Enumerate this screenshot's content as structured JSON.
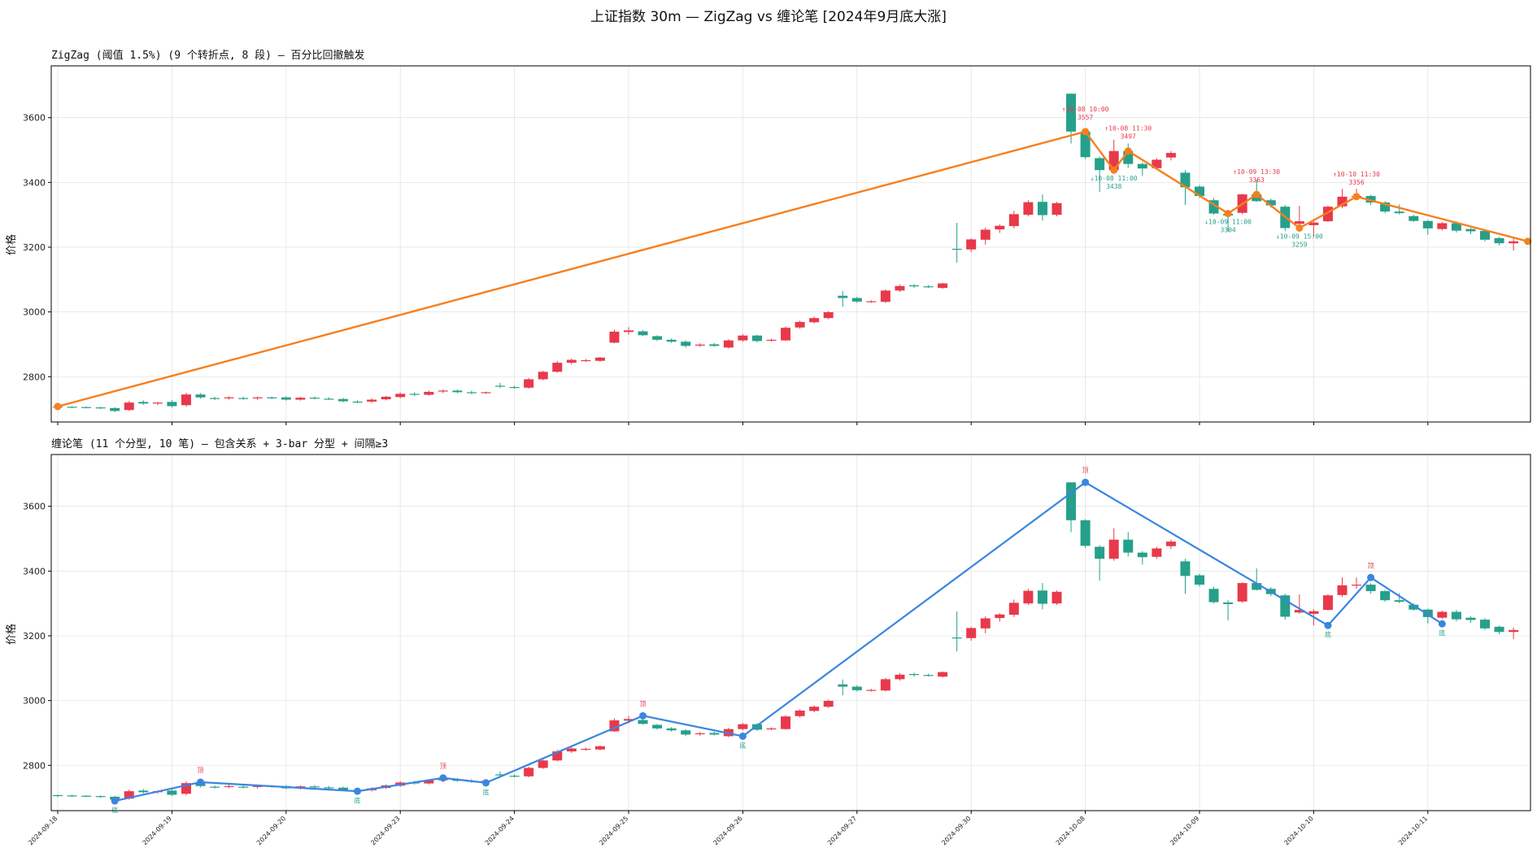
{
  "figure_title": "上证指数 30m — ZigZag vs 缠论笔  [2024年9月底大涨]",
  "colors": {
    "up": "#e8394a",
    "down": "#26a08a",
    "zigzag": "#f77f1d",
    "bi": "#3a86e0",
    "grid": "#e3e3e3"
  },
  "chart_data": [
    {
      "type": "candlestick",
      "title": "ZigZag (阈值 1.5%)  (9 个转折点, 8 段)  — 百分比回撤触发",
      "ylabel": "价格",
      "ylim": [
        2660,
        3760
      ],
      "yticks": [
        2800,
        3000,
        3200,
        3400,
        3600
      ],
      "grid": true,
      "overlay": "zigzag",
      "pivots": [
        {
          "bar": 0,
          "price": 2708,
          "kind": "low",
          "label": ""
        },
        {
          "bar": 72,
          "price": 3557,
          "kind": "high",
          "time": "10-08 10:00",
          "label": "3557"
        },
        {
          "bar": 74,
          "price": 3438,
          "kind": "low",
          "time": "10-08 11:00",
          "label": "3438"
        },
        {
          "bar": 75,
          "price": 3497,
          "kind": "high",
          "time": "10-08 11:30",
          "label": "3497"
        },
        {
          "bar": 82,
          "price": 3304,
          "kind": "low",
          "time": "10-09 11:00",
          "label": "3304"
        },
        {
          "bar": 84,
          "price": 3363,
          "kind": "high",
          "time": "10-09 13:30",
          "label": "3363"
        },
        {
          "bar": 87,
          "price": 3259,
          "kind": "low",
          "time": "10-09 15:00",
          "label": "3259"
        },
        {
          "bar": 91,
          "price": 3356,
          "kind": "high",
          "time": "10-10 11:30",
          "label": "3356"
        },
        {
          "bar": 103,
          "price": 3218,
          "kind": "low",
          "label": ""
        }
      ]
    },
    {
      "type": "candlestick",
      "title": "缠论笔  (11 个分型, 10 笔)  — 包含关系 + 3-bar 分型 + 间隔≥3",
      "ylabel": "价格",
      "ylim": [
        2660,
        3760
      ],
      "yticks": [
        2800,
        3000,
        3200,
        3400,
        3600
      ],
      "grid": true,
      "overlay": "bi",
      "fractals": [
        {
          "bar": 4,
          "price": 2690,
          "kind": "bottom",
          "label": "底"
        },
        {
          "bar": 10,
          "price": 2748,
          "kind": "top",
          "label": "顶"
        },
        {
          "bar": 21,
          "price": 2720,
          "kind": "bottom",
          "label": "底"
        },
        {
          "bar": 27,
          "price": 2761,
          "kind": "top",
          "label": "顶"
        },
        {
          "bar": 30,
          "price": 2746,
          "kind": "bottom",
          "label": "底"
        },
        {
          "bar": 41,
          "price": 2953,
          "kind": "top",
          "label": "顶"
        },
        {
          "bar": 48,
          "price": 2890,
          "kind": "bottom",
          "label": "底"
        },
        {
          "bar": 72,
          "price": 3674,
          "kind": "top",
          "label": "顶"
        },
        {
          "bar": 89,
          "price": 3232,
          "kind": "bottom",
          "label": "底"
        },
        {
          "bar": 92,
          "price": 3380,
          "kind": "top",
          "label": "顶"
        },
        {
          "bar": 97,
          "price": 3237,
          "kind": "bottom",
          "label": "底"
        }
      ]
    }
  ],
  "x_axis": {
    "tick_labels": [
      {
        "bar": 0,
        "label": "2024-09-18"
      },
      {
        "bar": 8,
        "label": "2024-09-19"
      },
      {
        "bar": 16,
        "label": "2024-09-20"
      },
      {
        "bar": 24,
        "label": "2024-09-23"
      },
      {
        "bar": 32,
        "label": "2024-09-24"
      },
      {
        "bar": 40,
        "label": "2024-09-25"
      },
      {
        "bar": 48,
        "label": "2024-09-26"
      },
      {
        "bar": 56,
        "label": "2024-09-27"
      },
      {
        "bar": 64,
        "label": "2024-09-30"
      },
      {
        "bar": 72,
        "label": "2024-10-08"
      },
      {
        "bar": 80,
        "label": "2024-10-09"
      },
      {
        "bar": 88,
        "label": "2024-10-10"
      },
      {
        "bar": 96,
        "label": "2024-10-11"
      }
    ]
  },
  "candles": [
    {
      "o": 2708,
      "h": 2710,
      "l": 2702,
      "c": 2706
    },
    {
      "o": 2707,
      "h": 2709,
      "l": 2703,
      "c": 2705
    },
    {
      "o": 2706,
      "h": 2708,
      "l": 2702,
      "c": 2704
    },
    {
      "o": 2705,
      "h": 2707,
      "l": 2700,
      "c": 2702
    },
    {
      "o": 2703,
      "h": 2706,
      "l": 2690,
      "c": 2694
    },
    {
      "o": 2697,
      "h": 2725,
      "l": 2694,
      "c": 2720
    },
    {
      "o": 2722,
      "h": 2727,
      "l": 2713,
      "c": 2717
    },
    {
      "o": 2717,
      "h": 2722,
      "l": 2712,
      "c": 2720
    },
    {
      "o": 2722,
      "h": 2728,
      "l": 2705,
      "c": 2709
    },
    {
      "o": 2712,
      "h": 2750,
      "l": 2707,
      "c": 2745
    },
    {
      "o": 2745,
      "h": 2749,
      "l": 2732,
      "c": 2736
    },
    {
      "o": 2734,
      "h": 2738,
      "l": 2728,
      "c": 2732
    },
    {
      "o": 2733,
      "h": 2740,
      "l": 2729,
      "c": 2736
    },
    {
      "o": 2734,
      "h": 2738,
      "l": 2729,
      "c": 2733
    },
    {
      "o": 2733,
      "h": 2739,
      "l": 2728,
      "c": 2736
    },
    {
      "o": 2736,
      "h": 2739,
      "l": 2731,
      "c": 2733
    },
    {
      "o": 2736,
      "h": 2739,
      "l": 2726,
      "c": 2729
    },
    {
      "o": 2729,
      "h": 2738,
      "l": 2726,
      "c": 2735
    },
    {
      "o": 2735,
      "h": 2739,
      "l": 2730,
      "c": 2732
    },
    {
      "o": 2732,
      "h": 2736,
      "l": 2728,
      "c": 2731
    },
    {
      "o": 2731,
      "h": 2734,
      "l": 2721,
      "c": 2724
    },
    {
      "o": 2723,
      "h": 2727,
      "l": 2719,
      "c": 2722
    },
    {
      "o": 2723,
      "h": 2733,
      "l": 2719,
      "c": 2729
    },
    {
      "o": 2730,
      "h": 2741,
      "l": 2727,
      "c": 2738
    },
    {
      "o": 2737,
      "h": 2751,
      "l": 2733,
      "c": 2747
    },
    {
      "o": 2747,
      "h": 2752,
      "l": 2740,
      "c": 2744
    },
    {
      "o": 2744,
      "h": 2757,
      "l": 2741,
      "c": 2753
    },
    {
      "o": 2754,
      "h": 2761,
      "l": 2749,
      "c": 2757
    },
    {
      "o": 2757,
      "h": 2760,
      "l": 2749,
      "c": 2752
    },
    {
      "o": 2752,
      "h": 2757,
      "l": 2746,
      "c": 2750
    },
    {
      "o": 2750,
      "h": 2754,
      "l": 2747,
      "c": 2752
    },
    {
      "o": 2772,
      "h": 2781,
      "l": 2765,
      "c": 2770
    },
    {
      "o": 2768,
      "h": 2772,
      "l": 2763,
      "c": 2766
    },
    {
      "o": 2766,
      "h": 2796,
      "l": 2763,
      "c": 2792
    },
    {
      "o": 2792,
      "h": 2818,
      "l": 2789,
      "c": 2815
    },
    {
      "o": 2815,
      "h": 2848,
      "l": 2812,
      "c": 2843
    },
    {
      "o": 2843,
      "h": 2856,
      "l": 2838,
      "c": 2852
    },
    {
      "o": 2850,
      "h": 2855,
      "l": 2845,
      "c": 2851
    },
    {
      "o": 2849,
      "h": 2861,
      "l": 2846,
      "c": 2859
    },
    {
      "o": 2905,
      "h": 2945,
      "l": 2903,
      "c": 2939
    },
    {
      "o": 2938,
      "h": 2953,
      "l": 2930,
      "c": 2943
    },
    {
      "o": 2940,
      "h": 2944,
      "l": 2925,
      "c": 2928
    },
    {
      "o": 2925,
      "h": 2928,
      "l": 2910,
      "c": 2914
    },
    {
      "o": 2914,
      "h": 2918,
      "l": 2904,
      "c": 2908
    },
    {
      "o": 2908,
      "h": 2912,
      "l": 2890,
      "c": 2895
    },
    {
      "o": 2896,
      "h": 2903,
      "l": 2892,
      "c": 2899
    },
    {
      "o": 2900,
      "h": 2904,
      "l": 2892,
      "c": 2895
    },
    {
      "o": 2890,
      "h": 2916,
      "l": 2887,
      "c": 2912
    },
    {
      "o": 2912,
      "h": 2931,
      "l": 2908,
      "c": 2927
    },
    {
      "o": 2927,
      "h": 2930,
      "l": 2906,
      "c": 2910
    },
    {
      "o": 2912,
      "h": 2917,
      "l": 2909,
      "c": 2914
    },
    {
      "o": 2912,
      "h": 2955,
      "l": 2910,
      "c": 2951
    },
    {
      "o": 2952,
      "h": 2973,
      "l": 2948,
      "c": 2969
    },
    {
      "o": 2968,
      "h": 2985,
      "l": 2964,
      "c": 2981
    },
    {
      "o": 2981,
      "h": 3003,
      "l": 2977,
      "c": 2999
    },
    {
      "o": 3050,
      "h": 3065,
      "l": 3016,
      "c": 3043
    },
    {
      "o": 3043,
      "h": 3047,
      "l": 3028,
      "c": 3032
    },
    {
      "o": 3032,
      "h": 3036,
      "l": 3028,
      "c": 3033
    },
    {
      "o": 3031,
      "h": 3070,
      "l": 3028,
      "c": 3066
    },
    {
      "o": 3066,
      "h": 3085,
      "l": 3062,
      "c": 3080
    },
    {
      "o": 3082,
      "h": 3086,
      "l": 3074,
      "c": 3079
    },
    {
      "o": 3079,
      "h": 3083,
      "l": 3074,
      "c": 3077
    },
    {
      "o": 3074,
      "h": 3090,
      "l": 3071,
      "c": 3088
    },
    {
      "o": 3195,
      "h": 3275,
      "l": 3152,
      "c": 3194
    },
    {
      "o": 3193,
      "h": 3228,
      "l": 3185,
      "c": 3224
    },
    {
      "o": 3223,
      "h": 3260,
      "l": 3208,
      "c": 3254
    },
    {
      "o": 3255,
      "h": 3270,
      "l": 3244,
      "c": 3266
    },
    {
      "o": 3265,
      "h": 3312,
      "l": 3258,
      "c": 3302
    },
    {
      "o": 3300,
      "h": 3345,
      "l": 3295,
      "c": 3339
    },
    {
      "o": 3340,
      "h": 3363,
      "l": 3282,
      "c": 3299
    },
    {
      "o": 3300,
      "h": 3340,
      "l": 3295,
      "c": 3336
    },
    {
      "o": 3674,
      "h": 3674,
      "l": 3520,
      "c": 3557
    },
    {
      "o": 3557,
      "h": 3560,
      "l": 3472,
      "c": 3478
    },
    {
      "o": 3475,
      "h": 3480,
      "l": 3370,
      "c": 3438
    },
    {
      "o": 3438,
      "h": 3532,
      "l": 3432,
      "c": 3497
    },
    {
      "o": 3497,
      "h": 3520,
      "l": 3445,
      "c": 3457
    },
    {
      "o": 3457,
      "h": 3462,
      "l": 3420,
      "c": 3443
    },
    {
      "o": 3444,
      "h": 3475,
      "l": 3438,
      "c": 3470
    },
    {
      "o": 3477,
      "h": 3497,
      "l": 3468,
      "c": 3491
    },
    {
      "o": 3430,
      "h": 3438,
      "l": 3330,
      "c": 3385
    },
    {
      "o": 3387,
      "h": 3392,
      "l": 3352,
      "c": 3358
    },
    {
      "o": 3345,
      "h": 3352,
      "l": 3300,
      "c": 3304
    },
    {
      "o": 3303,
      "h": 3310,
      "l": 3248,
      "c": 3298
    },
    {
      "o": 3306,
      "h": 3365,
      "l": 3302,
      "c": 3363
    },
    {
      "o": 3363,
      "h": 3408,
      "l": 3340,
      "c": 3342
    },
    {
      "o": 3345,
      "h": 3350,
      "l": 3322,
      "c": 3329
    },
    {
      "o": 3325,
      "h": 3330,
      "l": 3250,
      "c": 3259
    },
    {
      "o": 3272,
      "h": 3328,
      "l": 3268,
      "c": 3280
    },
    {
      "o": 3268,
      "h": 3282,
      "l": 3232,
      "c": 3276
    },
    {
      "o": 3280,
      "h": 3328,
      "l": 3278,
      "c": 3325
    },
    {
      "o": 3326,
      "h": 3380,
      "l": 3320,
      "c": 3356
    },
    {
      "o": 3358,
      "h": 3380,
      "l": 3345,
      "c": 3358
    },
    {
      "o": 3358,
      "h": 3362,
      "l": 3330,
      "c": 3338
    },
    {
      "o": 3338,
      "h": 3342,
      "l": 3305,
      "c": 3310
    },
    {
      "o": 3310,
      "h": 3332,
      "l": 3301,
      "c": 3305
    },
    {
      "o": 3296,
      "h": 3300,
      "l": 3278,
      "c": 3281
    },
    {
      "o": 3281,
      "h": 3284,
      "l": 3238,
      "c": 3258
    },
    {
      "o": 3256,
      "h": 3278,
      "l": 3252,
      "c": 3274
    },
    {
      "o": 3274,
      "h": 3280,
      "l": 3245,
      "c": 3251
    },
    {
      "o": 3256,
      "h": 3260,
      "l": 3240,
      "c": 3249
    },
    {
      "o": 3250,
      "h": 3255,
      "l": 3218,
      "c": 3223
    },
    {
      "o": 3228,
      "h": 3232,
      "l": 3205,
      "c": 3212
    },
    {
      "o": 3212,
      "h": 3226,
      "l": 3190,
      "c": 3218
    }
  ]
}
